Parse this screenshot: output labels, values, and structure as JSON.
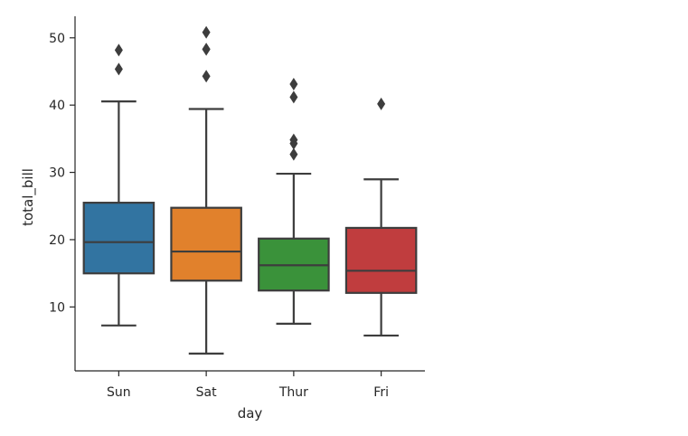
{
  "chart_data": {
    "type": "box",
    "title": "",
    "xlabel": "day",
    "ylabel": "total_bill",
    "ylim": [
      0.5,
      53.2
    ],
    "yticks": [
      10,
      20,
      30,
      40,
      50
    ],
    "categories": [
      "Sun",
      "Sat",
      "Thur",
      "Fri"
    ],
    "colors": [
      "#3274a1",
      "#e1812c",
      "#3a923a",
      "#c03d3e"
    ],
    "boxes": [
      {
        "category": "Sun",
        "whisker_low": 7.25,
        "q1": 14.99,
        "median": 19.63,
        "q3": 25.49,
        "whisker_high": 40.55,
        "outliers": [
          45.35,
          48.17
        ]
      },
      {
        "category": "Sat",
        "whisker_low": 3.07,
        "q1": 13.91,
        "median": 18.24,
        "q3": 24.74,
        "whisker_high": 39.42,
        "outliers": [
          44.3,
          48.27,
          48.33,
          50.81
        ]
      },
      {
        "category": "Thur",
        "whisker_low": 7.51,
        "q1": 12.44,
        "median": 16.2,
        "q3": 20.16,
        "whisker_high": 29.8,
        "outliers": [
          32.68,
          34.3,
          34.83,
          41.19,
          43.11
        ]
      },
      {
        "category": "Fri",
        "whisker_low": 5.75,
        "q1": 12.09,
        "median": 15.38,
        "q3": 21.75,
        "whisker_high": 28.97,
        "outliers": [
          40.17
        ]
      }
    ]
  },
  "colors": {
    "axis": "#262626",
    "box_edge": "#3d3d3d"
  }
}
